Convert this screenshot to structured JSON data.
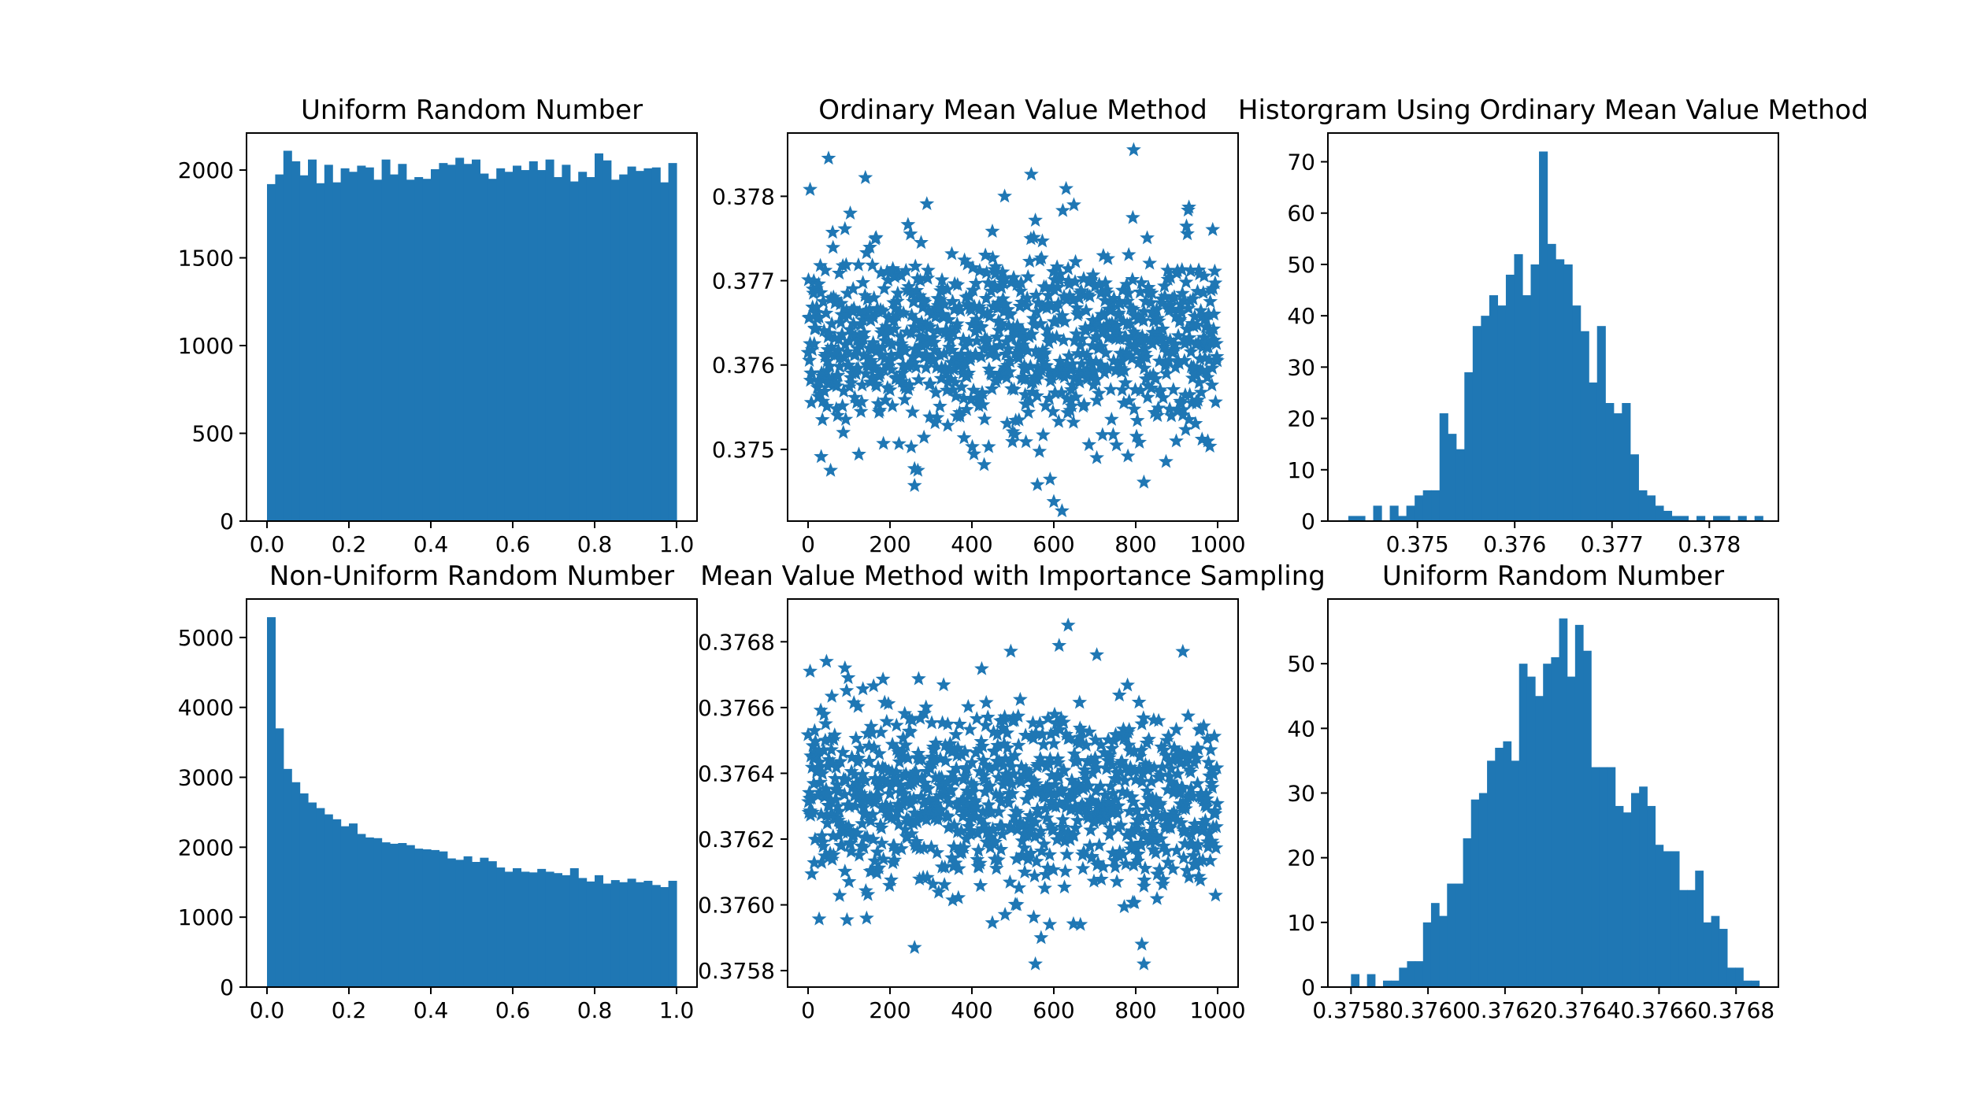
{
  "chart_data": [
    {
      "type": "bar",
      "title": "Uniform Random Number",
      "xlim": [
        -0.05,
        1.05
      ],
      "ylim": [
        0,
        2211
      ],
      "x_ticks": [
        "0.0",
        "0.2",
        "0.4",
        "0.6",
        "0.8",
        "1.0"
      ],
      "y_ticks": [
        "0",
        "500",
        "1000",
        "1500",
        "2000"
      ],
      "bins": {
        "start": 0.0,
        "end": 1.0
      },
      "values": [
        1920,
        1975,
        2110,
        2050,
        1970,
        2060,
        1925,
        2030,
        1930,
        2010,
        1990,
        2025,
        2015,
        1945,
        2060,
        1975,
        2035,
        1945,
        1960,
        1950,
        2005,
        2040,
        2030,
        2070,
        2035,
        2060,
        1980,
        1950,
        2010,
        1990,
        2025,
        2000,
        2050,
        2000,
        2060,
        1960,
        2030,
        1935,
        1990,
        1960,
        2095,
        2055,
        1945,
        1975,
        2020,
        1995,
        2010,
        2015,
        1930,
        2040
      ]
    },
    {
      "type": "scatter",
      "title": "Ordinary Mean Value Method",
      "xlim": [
        -50,
        1050
      ],
      "ylim": [
        0.37415,
        0.37875
      ],
      "x_ticks": [
        "0",
        "200",
        "400",
        "600",
        "800",
        "1000"
      ],
      "y_ticks": [
        "0.375",
        "0.376",
        "0.377",
        "0.378"
      ],
      "y_tick_values": [
        0.375,
        0.376,
        0.377,
        0.378
      ],
      "n": 1000,
      "mean": 0.3763,
      "sd": 0.00055,
      "seed": 11,
      "marker": "star",
      "outliers": [
        [
          5,
          0.37808
        ],
        [
          50,
          0.37845
        ],
        [
          140,
          0.37822
        ],
        [
          290,
          0.37791
        ],
        [
          480,
          0.378
        ],
        [
          545,
          0.37826
        ],
        [
          630,
          0.37809
        ],
        [
          795,
          0.37855
        ],
        [
          930,
          0.37787
        ],
        [
          560,
          0.37458
        ],
        [
          600,
          0.37438
        ],
        [
          620,
          0.37427
        ],
        [
          260,
          0.37457
        ],
        [
          820,
          0.37461
        ],
        [
          260,
          0.37477
        ],
        [
          55,
          0.37475
        ],
        [
          705,
          0.3749
        ]
      ]
    },
    {
      "type": "bar",
      "title": "Historgram Using Ordinary Mean Value Method",
      "xlim": [
        0.37408,
        0.37871
      ],
      "ylim": [
        0,
        75.6
      ],
      "x_ticks": [
        "0.375",
        "0.376",
        "0.377",
        "0.378"
      ],
      "x_tick_values": [
        0.375,
        0.376,
        0.377,
        0.378
      ],
      "y_ticks": [
        "0",
        "10",
        "20",
        "30",
        "40",
        "50",
        "60",
        "70"
      ],
      "bins": {
        "start": 0.37429,
        "end": 0.37855
      },
      "values": [
        1,
        1,
        0,
        3,
        0,
        3,
        1,
        3,
        5,
        6,
        6,
        21,
        17,
        14,
        29,
        38,
        40,
        44,
        42,
        48,
        52,
        44,
        50,
        72,
        54,
        51,
        50,
        42,
        37,
        27,
        38,
        23,
        21,
        23,
        13,
        6,
        5,
        3,
        2,
        1,
        1,
        0,
        1,
        0,
        1,
        1,
        0,
        1,
        0,
        1
      ]
    },
    {
      "type": "bar",
      "title": "Non-Uniform Random Number",
      "xlim": [
        -0.05,
        1.05
      ],
      "ylim": [
        0,
        5550
      ],
      "x_ticks": [
        "0.0",
        "0.2",
        "0.4",
        "0.6",
        "0.8",
        "1.0"
      ],
      "y_ticks": [
        "0",
        "1000",
        "2000",
        "3000",
        "4000",
        "5000"
      ],
      "bins": {
        "start": 0.0,
        "end": 1.0
      },
      "values": [
        5290,
        3700,
        3120,
        2930,
        2770,
        2640,
        2560,
        2470,
        2400,
        2300,
        2340,
        2190,
        2140,
        2130,
        2070,
        2050,
        2060,
        2030,
        1980,
        1970,
        1960,
        1940,
        1840,
        1820,
        1870,
        1790,
        1850,
        1800,
        1710,
        1650,
        1700,
        1650,
        1640,
        1690,
        1650,
        1630,
        1600,
        1700,
        1560,
        1510,
        1600,
        1480,
        1530,
        1500,
        1550,
        1500,
        1520,
        1460,
        1430,
        1520
      ]
    },
    {
      "type": "scatter",
      "title": "Mean Value Method with Importance Sampling",
      "xlim": [
        -50,
        1050
      ],
      "ylim": [
        0.37575,
        0.37693
      ],
      "x_ticks": [
        "0",
        "200",
        "400",
        "600",
        "800",
        "1000"
      ],
      "y_ticks": [
        "0.3758",
        "0.3760",
        "0.3762",
        "0.3764",
        "0.3766",
        "0.3768"
      ],
      "y_tick_values": [
        0.3758,
        0.376,
        0.3762,
        0.3764,
        0.3766,
        0.3768
      ],
      "n": 1000,
      "mean": 0.37632,
      "sd": 0.00014,
      "seed": 29,
      "marker": "star",
      "outliers": [
        [
          635,
          0.37685
        ],
        [
          555,
          0.37582
        ],
        [
          820,
          0.37582
        ],
        [
          815,
          0.37588
        ],
        [
          260,
          0.37587
        ],
        [
          590,
          0.37594
        ],
        [
          665,
          0.37594
        ],
        [
          5,
          0.37671
        ],
        [
          45,
          0.37674
        ],
        [
          90,
          0.37672
        ],
        [
          705,
          0.37676
        ],
        [
          915,
          0.37677
        ]
      ]
    },
    {
      "type": "bar",
      "title": "Uniform Random Number",
      "xlim": [
        0.37574,
        0.37691
      ],
      "ylim": [
        0,
        60
      ],
      "x_ticks": [
        "0.3758",
        "0.3760",
        "0.3762",
        "0.3764",
        "0.3766",
        "0.3768"
      ],
      "x_tick_values": [
        0.3758,
        0.376,
        0.3762,
        0.3764,
        0.3766,
        0.3768
      ],
      "y_ticks": [
        "0",
        "10",
        "20",
        "30",
        "40",
        "50"
      ],
      "bins": {
        "start": 0.3758,
        "end": 0.37686
      },
      "values": [
        2,
        0,
        2,
        0,
        1,
        1,
        3,
        4,
        4,
        10,
        13,
        11,
        16,
        16,
        23,
        29,
        30,
        35,
        37,
        38,
        35,
        50,
        48,
        45,
        50,
        51,
        57,
        48,
        56,
        52,
        34,
        34,
        34,
        28,
        27,
        30,
        31,
        28,
        22,
        21,
        21,
        15,
        15,
        18,
        10,
        11,
        9,
        3,
        3,
        1,
        1
      ]
    }
  ]
}
